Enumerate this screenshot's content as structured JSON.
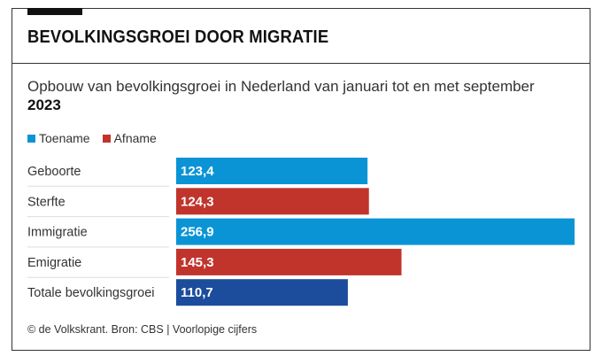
{
  "header": {
    "title": "BEVOLKINGSGROEI DOOR MIGRATIE",
    "subtitle": "Opbouw van bevolkingsgroei in Nederland van januari tot en met september",
    "subtitle_year": "2023"
  },
  "legend": {
    "items": [
      {
        "label": "Toename",
        "color": "#0a94d6"
      },
      {
        "label": "Afname",
        "color": "#c0342c"
      }
    ]
  },
  "footer": {
    "source": "© de Volkskrant. Bron: CBS | Voorlopige cijfers"
  },
  "chart_data": {
    "type": "bar",
    "orientation": "horizontal",
    "title": "BEVOLKINGSGROEI DOOR MIGRATIE",
    "subtitle": "Opbouw van bevolkingsgroei in Nederland van januari tot en met september 2023",
    "categories": [
      "Geboorte",
      "Sterfte",
      "Immigratie",
      "Emigratie",
      "Totale bevolkingsgroei"
    ],
    "values": [
      123.4,
      124.3,
      256.9,
      145.3,
      110.7
    ],
    "value_labels": [
      "123,4",
      "124,3",
      "256,9",
      "145,3",
      "110,7"
    ],
    "kinds": [
      "Toename",
      "Afname",
      "Toename",
      "Afname",
      "Totaal"
    ],
    "colors": [
      "#0a94d6",
      "#c0342c",
      "#0a94d6",
      "#c0342c",
      "#1c4c9c"
    ],
    "xlim": [
      0,
      256.9
    ],
    "xlabel": "",
    "ylabel": "",
    "grid": false,
    "legend_position": "top-left"
  }
}
